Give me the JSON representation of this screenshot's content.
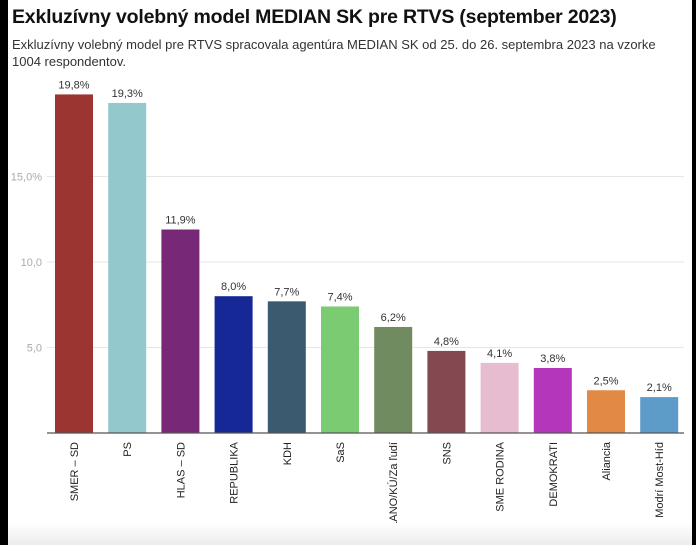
{
  "chart_data": {
    "type": "bar",
    "title": "Exkluzívny volebný model MEDIAN SK pre RTVS (september 2023)",
    "subtitle": "Exkluzívny volebný model pre RTVS spracovala agentúra MEDIAN SK od 25. do 26. septembra 2023 na vzorke 1004 respondentov.",
    "xlabel": "",
    "ylabel": "",
    "ylim": [
      0,
      20
    ],
    "grid": true,
    "y_ticks": [
      {
        "value": 5,
        "label": "5,0"
      },
      {
        "value": 10,
        "label": "10,0"
      },
      {
        "value": 15,
        "label": "15,0%"
      }
    ],
    "categories": [
      "SMER – SD",
      "PS",
      "HLAS – SD",
      "REPUBLIKA",
      "KDH",
      "SaS",
      "OĽANO/KÚ/Za ľudí",
      "SNS",
      "SME RODINA",
      "DEMOKRATI",
      "Aliancia",
      "Modrí Most-Híd"
    ],
    "values": [
      19.8,
      19.3,
      11.9,
      8.0,
      7.7,
      7.4,
      6.2,
      4.8,
      4.1,
      3.8,
      2.5,
      2.1
    ],
    "value_labels": [
      "19,8%",
      "19,3%",
      "11,9%",
      "8,0%",
      "7,7%",
      "7,4%",
      "6,2%",
      "4,8%",
      "4,1%",
      "3,8%",
      "2,5%",
      "2,1%"
    ],
    "colors": [
      "#9b3531",
      "#93c8cd",
      "#772877",
      "#162796",
      "#3b5a70",
      "#7bcb72",
      "#6f8b5f",
      "#844850",
      "#e8bcd0",
      "#b336bb",
      "#e28a45",
      "#5d9cc9"
    ]
  }
}
